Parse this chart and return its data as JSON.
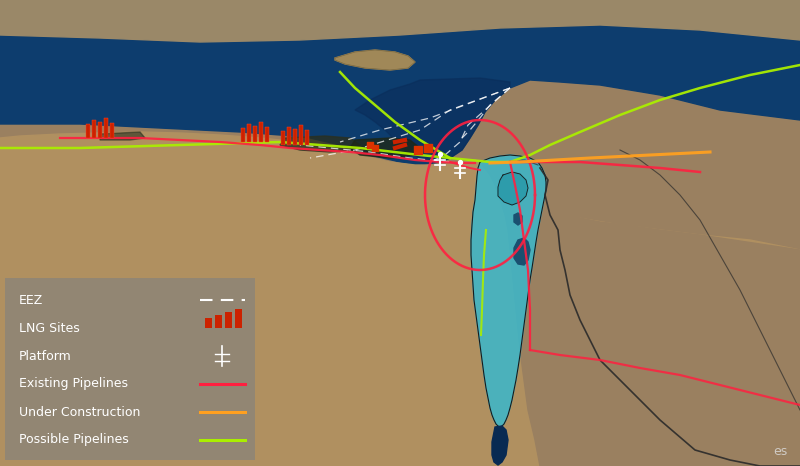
{
  "figsize": [
    8.0,
    4.66
  ],
  "dpi": 100,
  "colors": {
    "med_sea": "#0d3d6e",
    "med_sea_deep": "#082a52",
    "land_egypt": "#b09060",
    "land_jordan": "#a08858",
    "land_turkey": "#9a8060",
    "land_syria": "#a08858",
    "israel_cyan": "#3ab8cc",
    "israel_cyan2": "#2aa0b8",
    "coast_dark": "#222a1a",
    "eez_line": "#ffffff",
    "existing_pipe": "#ff2040",
    "under_const": "#ffa020",
    "possible_pipe": "#aaee00",
    "legend_bg": "#8a8a8a",
    "text": "#ffffff",
    "watermark": "#dddddd"
  },
  "legend_items": [
    {
      "label": "EEZ",
      "type": "dashed",
      "color": "#ffffff"
    },
    {
      "label": "LNG Sites",
      "type": "lng",
      "color": "#cc2200"
    },
    {
      "label": "Platform",
      "type": "platform",
      "color": "#ffffff"
    },
    {
      "label": "Existing Pipelines",
      "type": "line",
      "color": "#ff2040"
    },
    {
      "label": "Under Construction",
      "type": "line",
      "color": "#ffa020"
    },
    {
      "label": "Possible Pipelines",
      "type": "line",
      "color": "#aaee00"
    }
  ]
}
